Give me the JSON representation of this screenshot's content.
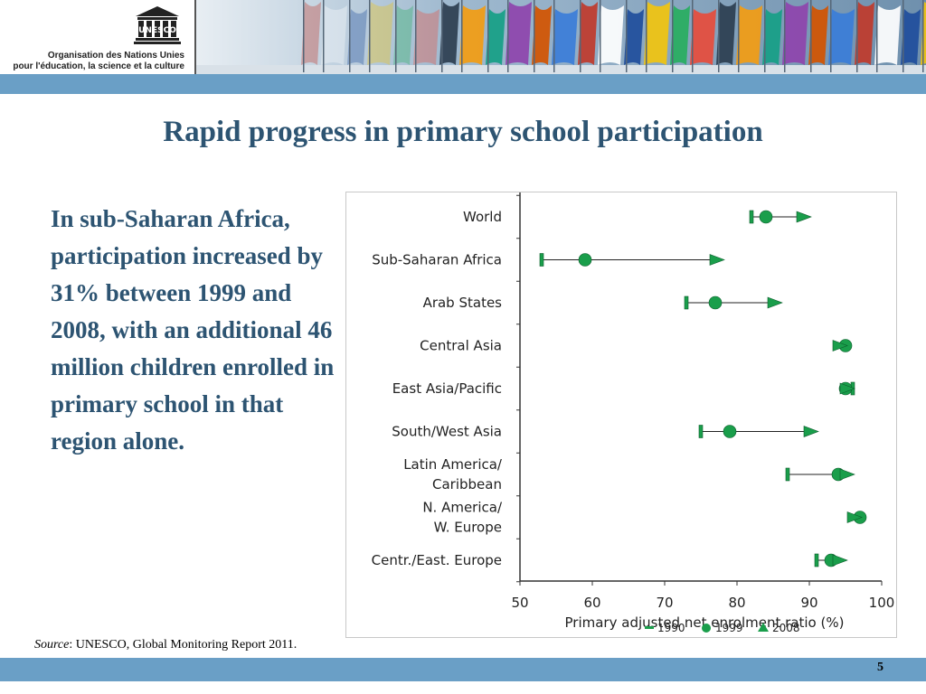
{
  "header": {
    "org_line1": "Organisation des Nations Unies",
    "org_line2": "pour l'éducation, la science et la culture",
    "logo_text": "UNESCO"
  },
  "slide": {
    "title": "Rapid progress in primary school participation",
    "body": "In sub-Saharan Africa, participation increased by 31% between 1999 and 2008, with an additional 46 million children enrolled in primary school in that region alone.",
    "source_label": "Source",
    "source_text": ": UNESCO, Global Monitoring Report 2011.",
    "page_number": "5"
  },
  "colors": {
    "title": "#2d5472",
    "band": "#6a9fc6",
    "marker": "#1a9e4b"
  },
  "chart_data": {
    "type": "scatter",
    "title": "",
    "xlabel": "Primary adjusted net enrolment ratio (%)",
    "ylabel": "",
    "xlim": [
      50,
      100
    ],
    "xticks": [
      "50",
      "60",
      "70",
      "80",
      "90",
      "100"
    ],
    "legend": [
      "1990",
      "1999",
      "2008"
    ],
    "legend_position": "bottom-right",
    "categories": [
      "World",
      "Sub-Saharan Africa",
      "Arab States",
      "Central Asia",
      "East Asia/Pacific",
      "South/West Asia",
      "Latin America/ Caribbean",
      "N. America/ W. Europe",
      "Centr./East. Europe"
    ],
    "series": [
      {
        "name": "1990",
        "values": [
          82,
          53,
          73,
          null,
          96,
          75,
          87,
          null,
          91
        ]
      },
      {
        "name": "1999",
        "values": [
          84,
          59,
          77,
          95,
          95,
          79,
          94,
          97,
          93
        ]
      },
      {
        "name": "2008",
        "values": [
          89,
          77,
          85,
          94,
          95,
          90,
          95,
          96,
          94
        ]
      }
    ]
  }
}
